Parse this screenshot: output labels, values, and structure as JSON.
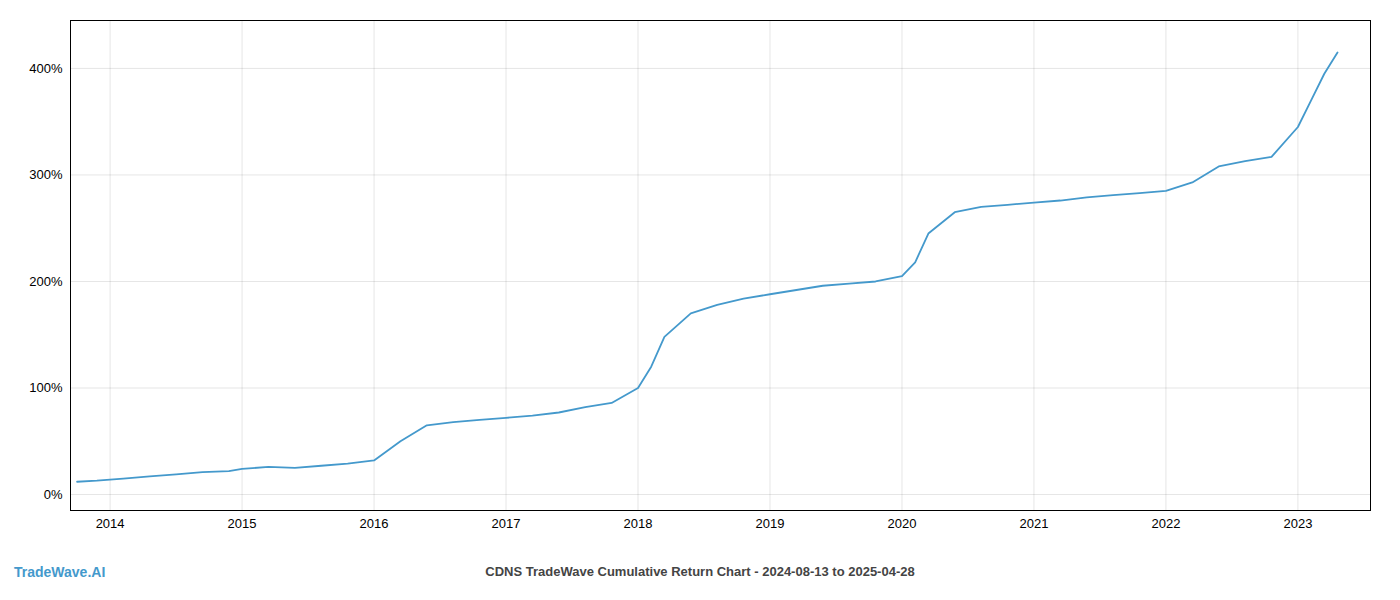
{
  "chart_data": {
    "type": "line",
    "title": "CDNS TradeWave Cumulative Return Chart - 2024-08-13 to 2025-04-28",
    "annotations": [
      "TradeWave.AI"
    ],
    "color": "#4499cc",
    "x": [
      2013.75,
      2013.9,
      2014.1,
      2014.3,
      2014.5,
      2014.7,
      2014.9,
      2015.0,
      2015.2,
      2015.4,
      2015.6,
      2015.8,
      2016.0,
      2016.2,
      2016.4,
      2016.6,
      2016.8,
      2017.0,
      2017.2,
      2017.4,
      2017.6,
      2017.8,
      2018.0,
      2018.1,
      2018.2,
      2018.4,
      2018.6,
      2018.8,
      2019.0,
      2019.2,
      2019.4,
      2019.6,
      2019.8,
      2020.0,
      2020.1,
      2020.2,
      2020.4,
      2020.6,
      2020.8,
      2021.0,
      2021.2,
      2021.4,
      2021.6,
      2021.8,
      2022.0,
      2022.2,
      2022.4,
      2022.6,
      2022.8,
      2023.0,
      2023.1,
      2023.2,
      2023.3
    ],
    "values": [
      12,
      13,
      15,
      17,
      19,
      21,
      22,
      24,
      26,
      25,
      27,
      29,
      32,
      50,
      65,
      68,
      70,
      72,
      74,
      77,
      82,
      86,
      100,
      120,
      148,
      170,
      178,
      184,
      188,
      192,
      196,
      198,
      200,
      205,
      218,
      245,
      265,
      270,
      272,
      274,
      276,
      279,
      281,
      283,
      285,
      293,
      308,
      313,
      317,
      345,
      370,
      395,
      415
    ],
    "xlim": [
      2013.7,
      2023.55
    ],
    "ylim": [
      -15,
      445
    ],
    "xticks": [
      2014,
      2015,
      2016,
      2017,
      2018,
      2019,
      2020,
      2021,
      2022,
      2023
    ],
    "yticks": [
      {
        "value": 0,
        "label": "0%"
      },
      {
        "value": 100,
        "label": "100%"
      },
      {
        "value": 200,
        "label": "200%"
      },
      {
        "value": 300,
        "label": "300%"
      },
      {
        "value": 400,
        "label": "400%"
      }
    ],
    "grid": true
  }
}
